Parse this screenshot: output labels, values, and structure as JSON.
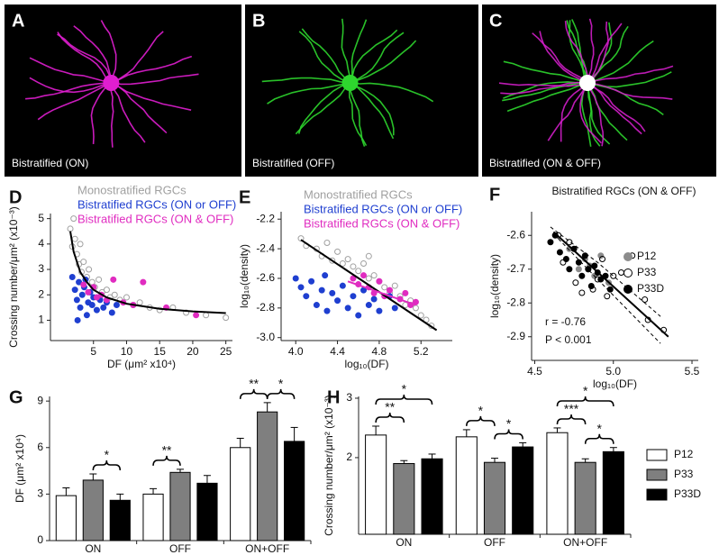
{
  "images": [
    {
      "panel": "A",
      "label": "Bistratified (ON)"
    },
    {
      "panel": "B",
      "label": "Bistratified (OFF)"
    },
    {
      "panel": "C",
      "label": "Bistratified (ON & OFF)"
    }
  ],
  "chart_data": [
    {
      "type": "scatter",
      "panel": "D",
      "x_label": "DF (μm² x10⁴)",
      "y_label": "Crossing number/μm² (x10⁻³)",
      "xlim": [
        -1.5,
        26
      ],
      "ylim": [
        0.2,
        5.2
      ],
      "xticks": [
        5,
        10,
        15,
        20,
        25
      ],
      "yticks": [
        1,
        2,
        3,
        4,
        5
      ],
      "legend_markers": false,
      "series": [
        {
          "name": "Monostratified RGCs",
          "color": "#a0a0a0",
          "filled": false,
          "x": [
            1.5,
            1.8,
            2.0,
            2.2,
            2.5,
            2.8,
            3.0,
            3.2,
            3.5,
            4.0,
            4.3,
            4.8,
            5.2,
            5.8,
            6.3,
            7.0,
            7.5,
            8.2,
            9.0,
            10.0,
            11.0,
            12.0,
            13.5,
            15.0,
            17.0,
            19.0,
            22.0,
            25.0
          ],
          "y": [
            4.6,
            3.9,
            5.0,
            4.2,
            3.6,
            3.2,
            4.0,
            2.9,
            3.3,
            2.7,
            3.0,
            2.5,
            2.3,
            2.6,
            2.1,
            2.2,
            1.9,
            2.0,
            1.8,
            1.9,
            1.6,
            1.7,
            1.5,
            1.4,
            1.5,
            1.3,
            1.2,
            1.1
          ]
        },
        {
          "name": "Bistratified RGCs (ON or OFF)",
          "color": "#1f3fd0",
          "filled": true,
          "x": [
            1.8,
            2.2,
            2.5,
            2.8,
            3.0,
            3.3,
            3.6,
            4.0,
            4.2,
            4.5,
            4.8,
            5.0,
            5.5,
            6.0,
            6.5,
            7.0,
            7.8,
            8.5,
            3.8,
            2.6
          ],
          "y": [
            2.7,
            2.2,
            1.8,
            2.5,
            1.5,
            2.0,
            2.3,
            1.2,
            1.7,
            2.1,
            1.6,
            1.9,
            1.4,
            1.8,
            1.5,
            1.7,
            1.3,
            1.6,
            2.6,
            1.0
          ]
        },
        {
          "name": "Bistratified RGCs (ON & OFF)",
          "color": "#e02cc0",
          "filled": true,
          "x": [
            3.5,
            4.2,
            5.0,
            5.5,
            6.2,
            7.0,
            8.0,
            9.5,
            11.0,
            12.5,
            16.0,
            20.5
          ],
          "y": [
            2.4,
            2.1,
            2.3,
            1.9,
            2.0,
            1.8,
            2.6,
            1.7,
            1.6,
            2.5,
            1.5,
            1.2
          ]
        }
      ],
      "fits": [
        {
          "color": "#000000",
          "dashed": false,
          "x": [
            1.5,
            2,
            3,
            4,
            5,
            7,
            10,
            15,
            20,
            25
          ],
          "y": [
            4.5,
            3.7,
            2.9,
            2.5,
            2.2,
            1.9,
            1.65,
            1.45,
            1.35,
            1.28
          ]
        }
      ]
    },
    {
      "type": "scatter",
      "panel": "E",
      "x_label": "log₁₀(DF)",
      "y_label": "log₁₀(density)",
      "xlim": [
        3.86,
        5.5
      ],
      "ylim": [
        -3.02,
        -2.15
      ],
      "xticks": [
        {
          "value": 4,
          "label": "4.0"
        },
        4.4,
        4.8,
        5.2
      ],
      "yticks": [
        -2.2,
        -2.4,
        -2.6,
        -2.8,
        {
          "value": -3,
          "label": "-3.0"
        }
      ],
      "legend_markers": false,
      "series": [
        {
          "name": "Monostratified RGCs",
          "color": "#a0a0a0",
          "filled": false,
          "x": [
            4.05,
            4.1,
            4.2,
            4.25,
            4.3,
            4.4,
            4.45,
            4.5,
            4.55,
            4.6,
            4.65,
            4.7,
            4.75,
            4.8,
            4.85,
            4.9,
            4.95,
            5.0,
            5.05,
            5.1,
            5.15,
            5.2,
            5.25,
            5.3,
            4.35,
            4.7
          ],
          "y": [
            -2.33,
            -2.38,
            -2.4,
            -2.45,
            -2.36,
            -2.42,
            -2.5,
            -2.47,
            -2.52,
            -2.55,
            -2.5,
            -2.6,
            -2.58,
            -2.62,
            -2.66,
            -2.7,
            -2.65,
            -2.72,
            -2.78,
            -2.75,
            -2.8,
            -2.85,
            -2.88,
            -2.92,
            -2.48,
            -2.45
          ]
        },
        {
          "name": "Bistratified RGCs (ON or OFF)",
          "color": "#1f3fd0",
          "filled": true,
          "x": [
            4.0,
            4.05,
            4.1,
            4.15,
            4.2,
            4.25,
            4.3,
            4.35,
            4.4,
            4.45,
            4.5,
            4.55,
            4.6,
            4.65,
            4.7,
            4.75,
            4.8,
            4.9,
            4.95,
            4.28
          ],
          "y": [
            -2.6,
            -2.66,
            -2.72,
            -2.62,
            -2.78,
            -2.68,
            -2.82,
            -2.7,
            -2.75,
            -2.65,
            -2.8,
            -2.72,
            -2.85,
            -2.68,
            -2.78,
            -2.74,
            -2.82,
            -2.72,
            -2.8,
            -2.58
          ]
        },
        {
          "name": "Bistratified RGCs (ON & OFF)",
          "color": "#e02cc0",
          "filled": true,
          "x": [
            4.55,
            4.6,
            4.65,
            4.7,
            4.75,
            4.8,
            4.85,
            4.9,
            5.0,
            5.05,
            5.1,
            5.15
          ],
          "y": [
            -2.6,
            -2.64,
            -2.58,
            -2.66,
            -2.7,
            -2.62,
            -2.72,
            -2.68,
            -2.74,
            -2.7,
            -2.78,
            -2.76
          ]
        }
      ],
      "fits": [
        {
          "color": "#000000",
          "dashed": false,
          "x": [
            4.05,
            5.35
          ],
          "y": [
            -2.34,
            -2.95
          ]
        },
        {
          "color": "#e02cc0",
          "dashed": false,
          "x": [
            4.5,
            5.15
          ],
          "y": [
            -2.62,
            -2.78
          ]
        }
      ]
    },
    {
      "type": "scatter",
      "panel": "F",
      "title": "Bistratified RGCs (ON & OFF)",
      "x_label": "log₁₀(DF)",
      "y_label": "log₁₀(density)",
      "xlim": [
        4.48,
        5.54
      ],
      "ylim": [
        -2.97,
        -2.53
      ],
      "xticks": [
        4.5,
        {
          "value": 5,
          "label": "5.0"
        },
        5.5
      ],
      "yticks": [
        -2.6,
        -2.7,
        -2.8,
        -2.9
      ],
      "legend_markers": true,
      "annotations": [
        "r = -0.76",
        "P < 0.001"
      ],
      "series": [
        {
          "name": "P12",
          "color": "#8c8c8c",
          "filled": true,
          "x": [
            4.72,
            4.78,
            4.82,
            4.88,
            4.92,
            4.97,
            4.85
          ],
          "y": [
            -2.64,
            -2.7,
            -2.67,
            -2.72,
            -2.66,
            -2.74,
            -2.69
          ]
        },
        {
          "name": "P33",
          "color": "#000000",
          "filled": false,
          "x": [
            4.65,
            4.68,
            4.72,
            4.76,
            4.8,
            4.84,
            4.87,
            4.9,
            4.93,
            4.96,
            5.0,
            5.05,
            5.12,
            5.2,
            5.22,
            5.32
          ],
          "y": [
            -2.6,
            -2.68,
            -2.62,
            -2.74,
            -2.77,
            -2.7,
            -2.76,
            -2.73,
            -2.67,
            -2.78,
            -2.72,
            -2.71,
            -2.66,
            -2.79,
            -2.85,
            -2.88
          ]
        },
        {
          "name": "P33D",
          "color": "#000000",
          "filled": true,
          "x": [
            4.6,
            4.63,
            4.66,
            4.7,
            4.72,
            4.75,
            4.78,
            4.8,
            4.82,
            4.84,
            4.86,
            4.88,
            4.9,
            4.92,
            4.95,
            4.98
          ],
          "y": [
            -2.62,
            -2.6,
            -2.65,
            -2.67,
            -2.7,
            -2.64,
            -2.68,
            -2.72,
            -2.66,
            -2.7,
            -2.75,
            -2.69,
            -2.71,
            -2.73,
            -2.72,
            -2.76
          ]
        }
      ],
      "fits": [
        {
          "color": "#000000",
          "dashed": false,
          "x": [
            4.62,
            5.35
          ],
          "y": [
            -2.59,
            -2.9
          ]
        },
        {
          "color": "#000000",
          "dashed": true,
          "x": [
            4.6,
            4.9,
            5.3
          ],
          "y": [
            -2.575,
            -2.68,
            -2.84
          ]
        },
        {
          "color": "#000000",
          "dashed": true,
          "x": [
            4.65,
            4.9,
            5.3
          ],
          "y": [
            -2.61,
            -2.73,
            -2.92
          ]
        }
      ]
    },
    {
      "type": "bar",
      "panel": "G",
      "y_label": "DF (μm² x10⁴)",
      "categories": [
        "ON",
        "OFF",
        "ON+OFF"
      ],
      "ylim": [
        0,
        9.3
      ],
      "yticks": [
        0,
        3,
        6,
        9
      ],
      "series": [
        {
          "name": "P12",
          "color": "#ffffff",
          "values": [
            2.9,
            3.0,
            6.0
          ],
          "errors": [
            0.5,
            0.35,
            0.6
          ]
        },
        {
          "name": "P33",
          "color": "#7f7f7f",
          "values": [
            3.9,
            4.4,
            8.3
          ],
          "errors": [
            0.4,
            0.2,
            0.6
          ]
        },
        {
          "name": "P33D",
          "color": "#000000",
          "values": [
            2.6,
            3.7,
            6.4
          ],
          "errors": [
            0.4,
            0.5,
            0.9
          ]
        }
      ],
      "significance": [
        {
          "category": 0,
          "from": 1,
          "to": 2,
          "label": "*"
        },
        {
          "category": 1,
          "from": 0,
          "to": 1,
          "label": "**"
        },
        {
          "category": 2,
          "from": 0,
          "to": 1,
          "label": "**"
        },
        {
          "category": 2,
          "from": 1,
          "to": 2,
          "label": "*"
        }
      ]
    },
    {
      "type": "bar",
      "panel": "H",
      "y_label": "Crossing number/μm² (x10⁻³)",
      "categories": [
        "ON",
        "OFF",
        "ON+OFF"
      ],
      "ylim": [
        0.71,
        3.03
      ],
      "yticks": [
        2,
        3
      ],
      "legend": "right",
      "series": [
        {
          "name": "P12",
          "color": "#ffffff",
          "values": [
            2.38,
            2.35,
            2.42
          ],
          "errors": [
            0.15,
            0.12,
            0.08
          ]
        },
        {
          "name": "P33",
          "color": "#7f7f7f",
          "values": [
            1.9,
            1.92,
            1.92
          ],
          "errors": [
            0.05,
            0.07,
            0.06
          ]
        },
        {
          "name": "P33D",
          "color": "#000000",
          "values": [
            1.98,
            2.18,
            2.1
          ],
          "errors": [
            0.08,
            0.07,
            0.07
          ]
        }
      ],
      "significance": [
        {
          "category": 0,
          "from": 0,
          "to": 1,
          "label": "**"
        },
        {
          "category": 0,
          "from": 0,
          "to": 2,
          "label": "*"
        },
        {
          "category": 1,
          "from": 0,
          "to": 1,
          "label": "*"
        },
        {
          "category": 1,
          "from": 1,
          "to": 2,
          "label": "*"
        },
        {
          "category": 2,
          "from": 0,
          "to": 1,
          "label": "***"
        },
        {
          "category": 2,
          "from": 0,
          "to": 2,
          "label": "*"
        },
        {
          "category": 2,
          "from": 1,
          "to": 2,
          "label": "*"
        }
      ]
    }
  ]
}
